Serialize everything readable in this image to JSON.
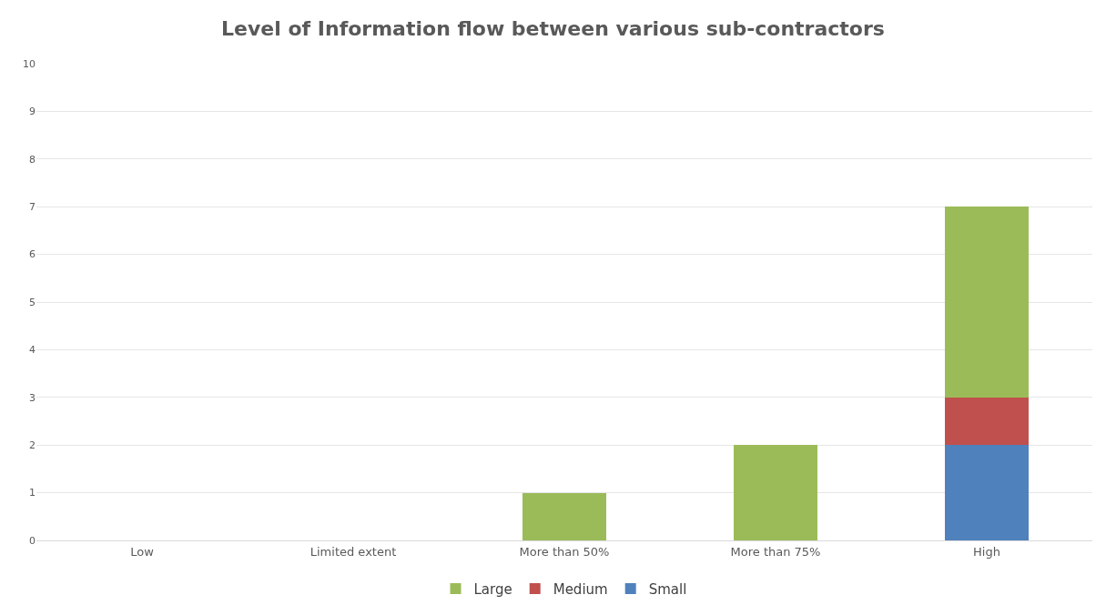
{
  "chart_data": {
    "type": "bar",
    "title": "Level of Information flow between various sub-contractors",
    "categories": [
      "Low",
      "Limited extent",
      "More than 50%",
      "More than 75%",
      "High"
    ],
    "stacked": true,
    "series": [
      {
        "name": "Small",
        "color": "#4f81bd",
        "values": [
          0,
          0,
          0,
          0,
          2
        ]
      },
      {
        "name": "Medium",
        "color": "#c0504d",
        "values": [
          0,
          0,
          0,
          0,
          1
        ]
      },
      {
        "name": "Large",
        "color": "#9bbb59",
        "values": [
          0,
          0,
          1,
          2,
          4
        ]
      }
    ],
    "ylim": [
      0,
      10
    ],
    "yticks": [
      0,
      1,
      2,
      3,
      4,
      5,
      6,
      7,
      8,
      9,
      10
    ],
    "grid": "y",
    "legend": "bottom"
  }
}
